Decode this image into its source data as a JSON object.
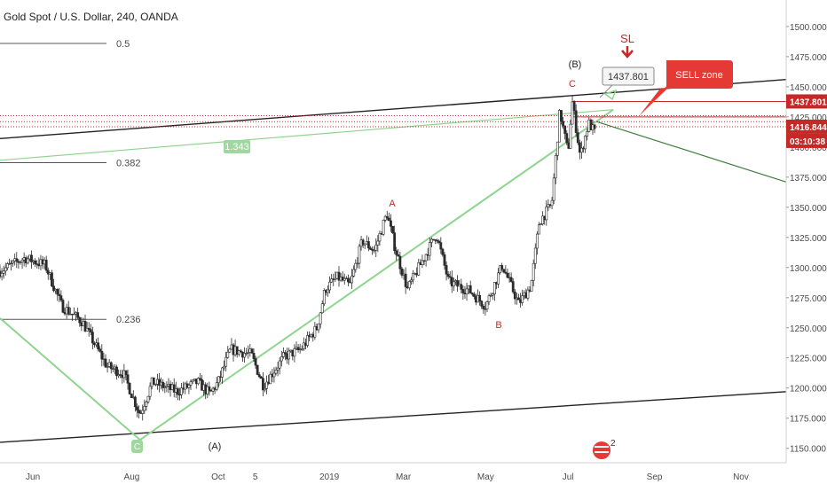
{
  "header": {
    "title": "Gold Spot / U.S. Dollar, 240, OANDA"
  },
  "chart_data": {
    "type": "candlestick",
    "title": "Gold Spot / U.S. Dollar, 240, OANDA",
    "ylim": [
      1138,
      1522
    ],
    "y_ticks": [
      1150,
      1175,
      1200,
      1225,
      1250,
      1275,
      1300,
      1325,
      1350,
      1375,
      1400,
      1425,
      1450,
      1475,
      1500
    ],
    "y_tick_labels": [
      "1150.000",
      "1175.000",
      "1200.000",
      "1225.000",
      "1250.000",
      "1275.000",
      "1300.000",
      "1325.000",
      "1350.000",
      "1375.000",
      "1400.000",
      "1425.000",
      "1450.000",
      "1475.000",
      "1500.000"
    ],
    "x_ticks": [
      "Jun",
      "Aug",
      "Oct",
      "5",
      "2019",
      "Mar",
      "May",
      "Jul",
      "Sep",
      "Nov"
    ],
    "x_ticks_t": [
      0.8,
      3.2,
      5.3,
      6.2,
      8.0,
      9.8,
      11.8,
      13.8,
      15.9,
      18.0
    ],
    "x_range_t": [
      0,
      19.1
    ],
    "price_path": [
      [
        0.0,
        1297
      ],
      [
        0.6,
        1308
      ],
      [
        1.1,
        1302
      ],
      [
        1.5,
        1268
      ],
      [
        2.0,
        1255
      ],
      [
        2.6,
        1218
      ],
      [
        3.0,
        1212
      ],
      [
        3.4,
        1178
      ],
      [
        3.7,
        1205
      ],
      [
        4.3,
        1197
      ],
      [
        4.8,
        1205
      ],
      [
        5.1,
        1195
      ],
      [
        5.3,
        1205
      ],
      [
        5.6,
        1232
      ],
      [
        6.1,
        1228
      ],
      [
        6.4,
        1202
      ],
      [
        6.9,
        1226
      ],
      [
        7.3,
        1232
      ],
      [
        7.7,
        1250
      ],
      [
        7.9,
        1282
      ],
      [
        8.2,
        1292
      ],
      [
        8.5,
        1285
      ],
      [
        8.8,
        1322
      ],
      [
        9.1,
        1314
      ],
      [
        9.4,
        1345
      ],
      [
        9.6,
        1316
      ],
      [
        9.9,
        1282
      ],
      [
        10.3,
        1308
      ],
      [
        10.6,
        1328
      ],
      [
        10.9,
        1288
      ],
      [
        11.4,
        1281
      ],
      [
        11.8,
        1268
      ],
      [
        12.2,
        1302
      ],
      [
        12.6,
        1270
      ],
      [
        12.9,
        1285
      ],
      [
        13.1,
        1338
      ],
      [
        13.4,
        1352
      ],
      [
        13.6,
        1430
      ],
      [
        13.8,
        1395
      ],
      [
        13.9,
        1438
      ],
      [
        14.1,
        1392
      ],
      [
        14.3,
        1420
      ],
      [
        14.45,
        1412
      ]
    ],
    "current_price": "1416.844",
    "current_price_value": 1416.844,
    "high_price": "1437.801",
    "high_price_value": 1437.801,
    "countdown": "03:10:38",
    "fib_levels": [
      {
        "label": "0.5",
        "price": 1486
      },
      {
        "label": "0.382",
        "price": 1387
      },
      {
        "label": "0.236",
        "price": 1257
      }
    ],
    "channel_upper": [
      [
        0.0,
        1407
      ],
      [
        19.1,
        1456
      ]
    ],
    "channel_lower": [
      [
        0.0,
        1155
      ],
      [
        19.1,
        1197
      ]
    ],
    "green_line_1": [
      [
        0.0,
        1258
      ],
      [
        3.4,
        1157
      ]
    ],
    "green_line_2": [
      [
        3.4,
        1157
      ],
      [
        14.9,
        1431
      ]
    ],
    "green_line_3": [
      [
        0.0,
        1389
      ],
      [
        14.9,
        1431
      ]
    ],
    "projection_line": [
      [
        14.5,
        1421
      ],
      [
        19.1,
        1371
      ]
    ],
    "resistance_price": 1425,
    "dotted_levels": [
      1426,
      1421,
      1416.844
    ],
    "labels": {
      "ratio_label": "1.343",
      "wave_B_paren": "(B)",
      "wave_A_paren": "(A)",
      "wave_A": "A",
      "wave_B": "B",
      "wave_C": "C",
      "wave_C_circle": "C",
      "sl": "SL",
      "sell_zone": "SELL zone",
      "badge_num": "2"
    },
    "colors": {
      "candle": "#2a2a2a",
      "green": "#8fd48f",
      "dark_green": "#3e7b3e",
      "red": "#c62828",
      "axis_text": "#4a4a4a"
    }
  }
}
